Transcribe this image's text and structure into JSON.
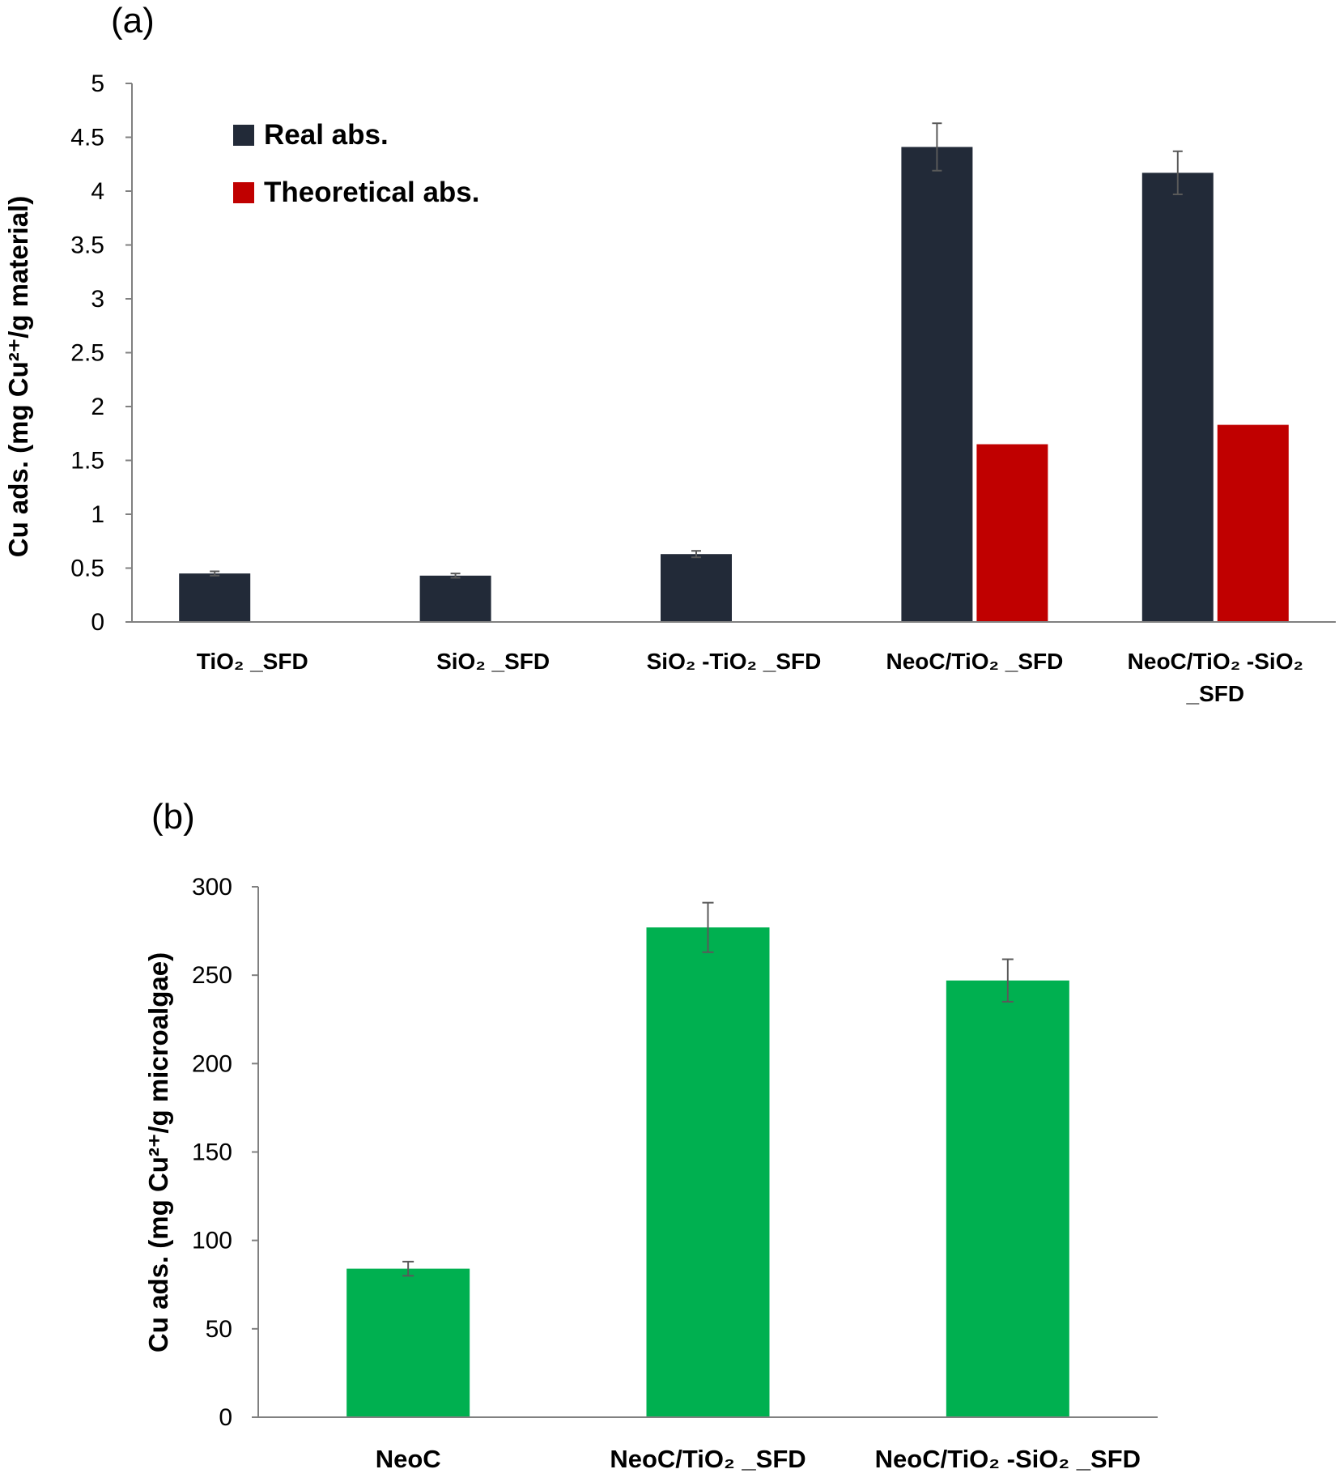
{
  "colors": {
    "real": "#222a38",
    "theoretical": "#c00000",
    "microalgae": "#00b050",
    "error_bar": "#595959",
    "axis": "#808080"
  },
  "chart_data": [
    {
      "panel_label": "(a)",
      "type": "bar",
      "ylabel": "Cu ads. (mg Cu²⁺/g material)",
      "ylim": [
        0,
        5
      ],
      "yticks": [
        "0",
        "0.5",
        "1",
        "1.5",
        "2",
        "2.5",
        "3",
        "3.5",
        "4",
        "4.5",
        "5"
      ],
      "categories": [
        "TiO₂ _SFD",
        "SiO₂ _SFD",
        "SiO₂ -TiO₂ _SFD",
        "NeoC/TiO₂ _SFD",
        "NeoC/TiO₂ -SiO₂\n_SFD"
      ],
      "series": [
        {
          "name": "Real abs.",
          "values": [
            0.45,
            0.43,
            0.63,
            4.41,
            4.17
          ],
          "errors": [
            0.02,
            0.02,
            0.03,
            0.22,
            0.2
          ]
        },
        {
          "name": "Theoretical abs.",
          "values": [
            null,
            null,
            null,
            1.65,
            1.83
          ],
          "errors": [
            null,
            null,
            null,
            null,
            null
          ]
        }
      ],
      "legend_position": "top-left",
      "grid": false
    },
    {
      "panel_label": "(b)",
      "type": "bar",
      "ylabel": "Cu ads. (mg Cu²⁺/g microalgae)",
      "ylim": [
        0,
        300
      ],
      "yticks": [
        "0",
        "50",
        "100",
        "150",
        "200",
        "250",
        "300"
      ],
      "categories": [
        "NeoC",
        "NeoC/TiO₂ _SFD",
        "NeoC/TiO₂ -SiO₂ _SFD"
      ],
      "series": [
        {
          "values": [
            84,
            277,
            247
          ],
          "errors": [
            4,
            14,
            12
          ]
        }
      ],
      "grid": false
    }
  ]
}
